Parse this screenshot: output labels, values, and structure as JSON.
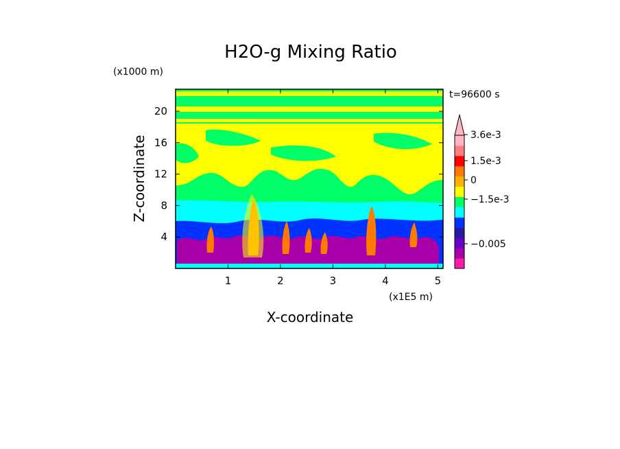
{
  "chart_data": {
    "type": "heatmap",
    "title": "H2O-g Mixing Ratio",
    "time_label": "t=96600 s",
    "xlabel": "X-coordinate",
    "ylabel": "Z-coordinate",
    "x_unit": "(x1E5 m)",
    "y_unit": "(x1000 m)",
    "x_ticks": [
      "1",
      "2",
      "3",
      "4",
      "5"
    ],
    "y_ticks": [
      "4",
      "8",
      "12",
      "16",
      "20"
    ],
    "xlim": [
      0,
      5.1
    ],
    "ylim": [
      0,
      22.8
    ],
    "colorbar": {
      "labels": [
        "3.6e-3",
        "1.5e-3",
        "0",
        "−1.5e-3",
        "−0.005"
      ],
      "levels": [
        {
          "color": "#ff1aa8"
        },
        {
          "color": "#a800a8"
        },
        {
          "color": "#6a00c8"
        },
        {
          "color": "#2b1aa0"
        },
        {
          "color": "#0033ff"
        },
        {
          "color": "#00ffff"
        },
        {
          "color": "#00ff66"
        },
        {
          "color": "#ffff00"
        },
        {
          "color": "#ffb300"
        },
        {
          "color": "#ff7a00"
        },
        {
          "color": "#ff0000"
        },
        {
          "color": "#ff7f7f"
        },
        {
          "color": "#ffb6c1"
        }
      ]
    },
    "colors": {
      "upper": "#00ff66",
      "mid": "#ffff00",
      "moist_band": "#00ffff",
      "low_dry": "#0033ff",
      "low_core": "#a800a8",
      "plume": "#ff7a00"
    }
  }
}
